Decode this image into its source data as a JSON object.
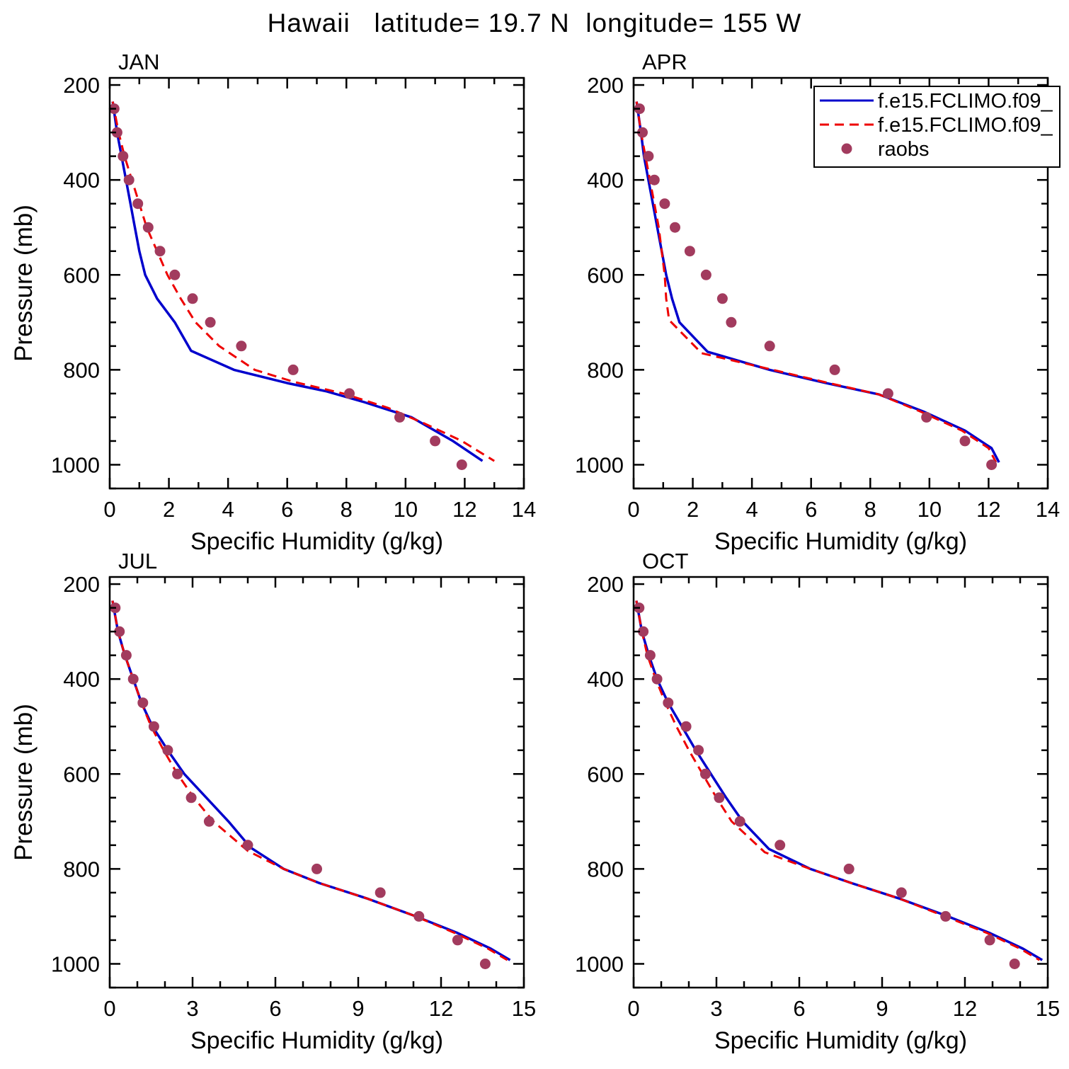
{
  "figure": {
    "title": "Hawaii   latitude= 19.7 N  longitude= 155 W"
  },
  "colors": {
    "model1": "#0000cc",
    "model2": "#ee0000",
    "raobs": "#a23b5e",
    "axis": "#000000",
    "background": "#ffffff"
  },
  "legend": {
    "entries": [
      {
        "label": "f.e15.FCLIMO.f09_",
        "style": "solid",
        "color_key": "model1"
      },
      {
        "label": "f.e15.FCLIMO.f09_",
        "style": "dashed",
        "color_key": "model2"
      },
      {
        "label": "raobs",
        "style": "scatter",
        "color_key": "raobs"
      }
    ]
  },
  "chart_data": [
    {
      "type": "line",
      "panel": "JAN",
      "xlabel": "Specific Humidity (g/kg)",
      "ylabel": "Pressure (mb)",
      "xlim": [
        0,
        14
      ],
      "xticks": [
        0,
        2,
        4,
        6,
        8,
        10,
        12,
        14
      ],
      "x_minor_step": 1,
      "ylim": [
        185,
        1050
      ],
      "yticks": [
        200,
        400,
        600,
        800,
        1000
      ],
      "y_minor_step": 50,
      "y_axis": "inverted_pressure",
      "series": [
        {
          "name": "f.e15.FCLIMO.f09_",
          "style": "solid",
          "color_key": "model1",
          "points": [
            [
              0.1,
              235
            ],
            [
              0.25,
              300
            ],
            [
              0.4,
              350
            ],
            [
              0.55,
              400
            ],
            [
              0.7,
              450
            ],
            [
              0.85,
              500
            ],
            [
              1.0,
              550
            ],
            [
              1.2,
              600
            ],
            [
              1.6,
              650
            ],
            [
              2.2,
              700
            ],
            [
              2.75,
              760
            ],
            [
              4.2,
              800
            ],
            [
              6.0,
              828
            ],
            [
              7.3,
              845
            ],
            [
              8.6,
              868
            ],
            [
              10.2,
              900
            ],
            [
              11.6,
              950
            ],
            [
              12.6,
              992
            ]
          ]
        },
        {
          "name": "f.e15.FCLIMO.f09_",
          "style": "dashed",
          "color_key": "model2",
          "points": [
            [
              0.1,
              235
            ],
            [
              0.3,
              300
            ],
            [
              0.5,
              350
            ],
            [
              0.75,
              400
            ],
            [
              1.0,
              450
            ],
            [
              1.25,
              500
            ],
            [
              1.6,
              550
            ],
            [
              1.95,
              600
            ],
            [
              2.4,
              650
            ],
            [
              2.9,
              700
            ],
            [
              3.7,
              750
            ],
            [
              4.9,
              800
            ],
            [
              6.2,
              825
            ],
            [
              7.9,
              850
            ],
            [
              9.4,
              880
            ],
            [
              10.6,
              912
            ],
            [
              11.9,
              950
            ],
            [
              13.0,
              992
            ]
          ]
        },
        {
          "name": "raobs",
          "style": "scatter",
          "color_key": "raobs",
          "points": [
            [
              0.15,
              250
            ],
            [
              0.25,
              300
            ],
            [
              0.45,
              350
            ],
            [
              0.65,
              400
            ],
            [
              0.95,
              450
            ],
            [
              1.3,
              500
            ],
            [
              1.7,
              550
            ],
            [
              2.2,
              600
            ],
            [
              2.8,
              650
            ],
            [
              3.4,
              700
            ],
            [
              4.45,
              750
            ],
            [
              6.2,
              800
            ],
            [
              8.1,
              850
            ],
            [
              9.8,
              900
            ],
            [
              11.0,
              950
            ],
            [
              11.9,
              1000
            ]
          ]
        }
      ]
    },
    {
      "type": "line",
      "panel": "APR",
      "xlabel": "Specific Humidity (g/kg)",
      "ylabel": "Pressure (mb)",
      "xlim": [
        0,
        14
      ],
      "xticks": [
        0,
        2,
        4,
        6,
        8,
        10,
        12,
        14
      ],
      "x_minor_step": 1,
      "ylim": [
        185,
        1050
      ],
      "yticks": [
        200,
        400,
        600,
        800,
        1000
      ],
      "y_minor_step": 50,
      "y_axis": "inverted_pressure",
      "series": [
        {
          "name": "f.e15.FCLIMO.f09_",
          "style": "solid",
          "color_key": "model1",
          "points": [
            [
              0.1,
              235
            ],
            [
              0.25,
              300
            ],
            [
              0.35,
              350
            ],
            [
              0.5,
              400
            ],
            [
              0.65,
              450
            ],
            [
              0.8,
              500
            ],
            [
              0.95,
              550
            ],
            [
              1.1,
              600
            ],
            [
              1.3,
              650
            ],
            [
              1.55,
              700
            ],
            [
              2.5,
              762
            ],
            [
              4.6,
              800
            ],
            [
              6.5,
              828
            ],
            [
              8.3,
              852
            ],
            [
              9.8,
              888
            ],
            [
              11.2,
              928
            ],
            [
              12.1,
              965
            ],
            [
              12.35,
              995
            ]
          ]
        },
        {
          "name": "f.e15.FCLIMO.f09_",
          "style": "dashed",
          "color_key": "model2",
          "points": [
            [
              0.1,
              235
            ],
            [
              0.25,
              300
            ],
            [
              0.4,
              350
            ],
            [
              0.55,
              400
            ],
            [
              0.7,
              450
            ],
            [
              0.85,
              500
            ],
            [
              0.95,
              550
            ],
            [
              1.05,
              600
            ],
            [
              1.1,
              650
            ],
            [
              1.2,
              695
            ],
            [
              2.3,
              765
            ],
            [
              4.7,
              800
            ],
            [
              6.6,
              828
            ],
            [
              8.3,
              852
            ],
            [
              9.7,
              888
            ],
            [
              11.1,
              928
            ],
            [
              12.0,
              965
            ],
            [
              12.25,
              995
            ]
          ]
        },
        {
          "name": "raobs",
          "style": "scatter",
          "color_key": "raobs",
          "points": [
            [
              0.2,
              250
            ],
            [
              0.3,
              300
            ],
            [
              0.5,
              350
            ],
            [
              0.7,
              400
            ],
            [
              1.05,
              450
            ],
            [
              1.4,
              500
            ],
            [
              1.9,
              550
            ],
            [
              2.45,
              600
            ],
            [
              3.0,
              650
            ],
            [
              3.3,
              700
            ],
            [
              4.6,
              750
            ],
            [
              6.8,
              800
            ],
            [
              8.6,
              850
            ],
            [
              9.9,
              900
            ],
            [
              11.2,
              950
            ],
            [
              12.1,
              1000
            ]
          ]
        }
      ]
    },
    {
      "type": "line",
      "panel": "JUL",
      "xlabel": "Specific Humidity (g/kg)",
      "ylabel": "Pressure (mb)",
      "xlim": [
        0,
        15
      ],
      "xticks": [
        0,
        3,
        6,
        9,
        12,
        15
      ],
      "x_minor_step": 1,
      "ylim": [
        185,
        1050
      ],
      "yticks": [
        200,
        400,
        600,
        800,
        1000
      ],
      "y_minor_step": 50,
      "y_axis": "inverted_pressure",
      "series": [
        {
          "name": "f.e15.FCLIMO.f09_",
          "style": "solid",
          "color_key": "model1",
          "points": [
            [
              0.1,
              235
            ],
            [
              0.3,
              300
            ],
            [
              0.55,
              350
            ],
            [
              0.85,
              400
            ],
            [
              1.15,
              450
            ],
            [
              1.55,
              500
            ],
            [
              2.1,
              550
            ],
            [
              2.7,
              600
            ],
            [
              3.5,
              650
            ],
            [
              4.3,
              700
            ],
            [
              5.1,
              755
            ],
            [
              6.3,
              800
            ],
            [
              7.6,
              830
            ],
            [
              9.3,
              862
            ],
            [
              11.0,
              898
            ],
            [
              12.6,
              935
            ],
            [
              13.8,
              968
            ],
            [
              14.5,
              992
            ]
          ]
        },
        {
          "name": "f.e15.FCLIMO.f09_",
          "style": "dashed",
          "color_key": "model2",
          "points": [
            [
              0.1,
              235
            ],
            [
              0.3,
              300
            ],
            [
              0.55,
              350
            ],
            [
              0.85,
              400
            ],
            [
              1.15,
              450
            ],
            [
              1.5,
              500
            ],
            [
              1.95,
              550
            ],
            [
              2.45,
              600
            ],
            [
              3.05,
              650
            ],
            [
              3.75,
              700
            ],
            [
              5.0,
              762
            ],
            [
              6.3,
              800
            ],
            [
              7.6,
              830
            ],
            [
              9.3,
              862
            ],
            [
              11.0,
              898
            ],
            [
              12.5,
              935
            ],
            [
              13.7,
              968
            ],
            [
              14.4,
              992
            ]
          ]
        },
        {
          "name": "raobs",
          "style": "scatter",
          "color_key": "raobs",
          "points": [
            [
              0.2,
              250
            ],
            [
              0.35,
              300
            ],
            [
              0.6,
              350
            ],
            [
              0.85,
              400
            ],
            [
              1.2,
              450
            ],
            [
              1.6,
              500
            ],
            [
              2.1,
              550
            ],
            [
              2.45,
              600
            ],
            [
              2.95,
              650
            ],
            [
              3.6,
              700
            ],
            [
              5.0,
              750
            ],
            [
              7.5,
              800
            ],
            [
              9.8,
              850
            ],
            [
              11.2,
              900
            ],
            [
              12.6,
              950
            ],
            [
              13.6,
              1000
            ]
          ]
        }
      ]
    },
    {
      "type": "line",
      "panel": "OCT",
      "xlabel": "Specific Humidity (g/kg)",
      "ylabel": "Pressure (mb)",
      "xlim": [
        0,
        15
      ],
      "xticks": [
        0,
        3,
        6,
        9,
        12,
        15
      ],
      "x_minor_step": 1,
      "ylim": [
        185,
        1050
      ],
      "yticks": [
        200,
        400,
        600,
        800,
        1000
      ],
      "y_minor_step": 50,
      "y_axis": "inverted_pressure",
      "series": [
        {
          "name": "f.e15.FCLIMO.f09_",
          "style": "solid",
          "color_key": "model1",
          "points": [
            [
              0.1,
              235
            ],
            [
              0.3,
              300
            ],
            [
              0.55,
              350
            ],
            [
              0.85,
              400
            ],
            [
              1.25,
              450
            ],
            [
              1.75,
              500
            ],
            [
              2.25,
              550
            ],
            [
              2.8,
              600
            ],
            [
              3.35,
              650
            ],
            [
              3.95,
              700
            ],
            [
              4.9,
              758
            ],
            [
              6.4,
              800
            ],
            [
              7.9,
              830
            ],
            [
              9.6,
              862
            ],
            [
              11.3,
              898
            ],
            [
              12.9,
              935
            ],
            [
              14.1,
              968
            ],
            [
              14.8,
              992
            ]
          ]
        },
        {
          "name": "f.e15.FCLIMO.f09_",
          "style": "dashed",
          "color_key": "model2",
          "points": [
            [
              0.1,
              235
            ],
            [
              0.3,
              300
            ],
            [
              0.5,
              350
            ],
            [
              0.8,
              400
            ],
            [
              1.15,
              450
            ],
            [
              1.55,
              500
            ],
            [
              2.0,
              550
            ],
            [
              2.5,
              600
            ],
            [
              3.0,
              650
            ],
            [
              3.55,
              700
            ],
            [
              4.75,
              765
            ],
            [
              6.4,
              800
            ],
            [
              7.9,
              830
            ],
            [
              9.6,
              862
            ],
            [
              11.2,
              898
            ],
            [
              12.8,
              935
            ],
            [
              14.0,
              968
            ],
            [
              14.7,
              992
            ]
          ]
        },
        {
          "name": "raobs",
          "style": "scatter",
          "color_key": "raobs",
          "points": [
            [
              0.2,
              250
            ],
            [
              0.35,
              300
            ],
            [
              0.6,
              350
            ],
            [
              0.85,
              400
            ],
            [
              1.25,
              450
            ],
            [
              1.9,
              500
            ],
            [
              2.35,
              550
            ],
            [
              2.6,
              600
            ],
            [
              3.1,
              650
            ],
            [
              3.85,
              700
            ],
            [
              5.3,
              750
            ],
            [
              7.8,
              800
            ],
            [
              9.7,
              850
            ],
            [
              11.3,
              900
            ],
            [
              12.9,
              950
            ],
            [
              13.8,
              1000
            ]
          ]
        }
      ]
    }
  ]
}
